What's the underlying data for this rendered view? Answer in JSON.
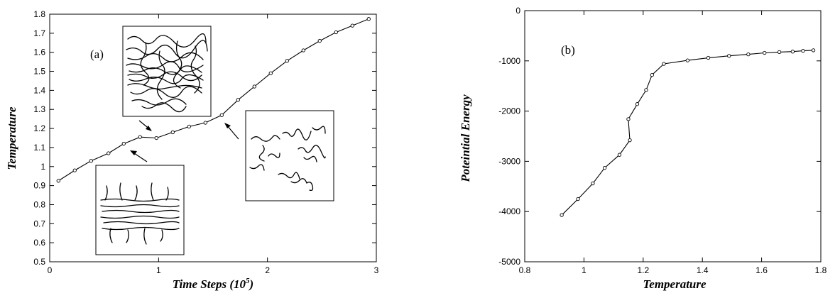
{
  "chart_data": [
    {
      "type": "line",
      "panel_label": "(a)",
      "xlabel_main": "Time Steps (10",
      "xlabel_sup": "5",
      "xlabel_end": ")",
      "ylabel": "Temperature",
      "xlim": [
        0,
        3
      ],
      "ylim": [
        0.5,
        1.8
      ],
      "xticks": [
        "0",
        "1",
        "2",
        "3"
      ],
      "yticks": [
        "0.5",
        "0.6",
        "0.7",
        "0.8",
        "0.9",
        "1",
        "1.1",
        "1.2",
        "1.3",
        "1.4",
        "1.5",
        "1.6",
        "1.7",
        "1.8"
      ],
      "grid": false,
      "series": [
        {
          "x": [
            0.08,
            0.23,
            0.38,
            0.54,
            0.68,
            0.83,
            0.98,
            1.13,
            1.28,
            1.43,
            1.58,
            1.73,
            1.88,
            2.03,
            2.18,
            2.33,
            2.48,
            2.63,
            2.78,
            2.93
          ],
          "y": [
            0.925,
            0.98,
            1.03,
            1.07,
            1.12,
            1.155,
            1.15,
            1.18,
            1.21,
            1.23,
            1.27,
            1.35,
            1.42,
            1.49,
            1.555,
            1.61,
            1.66,
            1.705,
            1.74,
            1.775
          ]
        }
      ],
      "insets": [
        "disordered-aggregate",
        "ordered-bundle",
        "dissociated-chains"
      ]
    },
    {
      "type": "line",
      "panel_label": "(b)",
      "xlabel": "Temperature",
      "ylabel": "Poteintial Energy",
      "xlim": [
        0.8,
        1.8
      ],
      "ylim": [
        -5000,
        0
      ],
      "xticks": [
        "0.8",
        "1",
        "1.2",
        "1.4",
        "1.6",
        "1.8"
      ],
      "yticks": [
        "0",
        "-1000",
        "-2000",
        "-3000",
        "-4000",
        "-5000"
      ],
      "grid": false,
      "series": [
        {
          "x": [
            0.925,
            0.98,
            1.03,
            1.07,
            1.12,
            1.155,
            1.15,
            1.18,
            1.21,
            1.23,
            1.27,
            1.35,
            1.42,
            1.49,
            1.555,
            1.61,
            1.66,
            1.705,
            1.74,
            1.775
          ],
          "y": [
            -4070,
            -3750,
            -3440,
            -3130,
            -2870,
            -2580,
            -2160,
            -1860,
            -1580,
            -1280,
            -1060,
            -990,
            -940,
            -900,
            -870,
            -840,
            -825,
            -815,
            -800,
            -790
          ]
        }
      ]
    }
  ]
}
